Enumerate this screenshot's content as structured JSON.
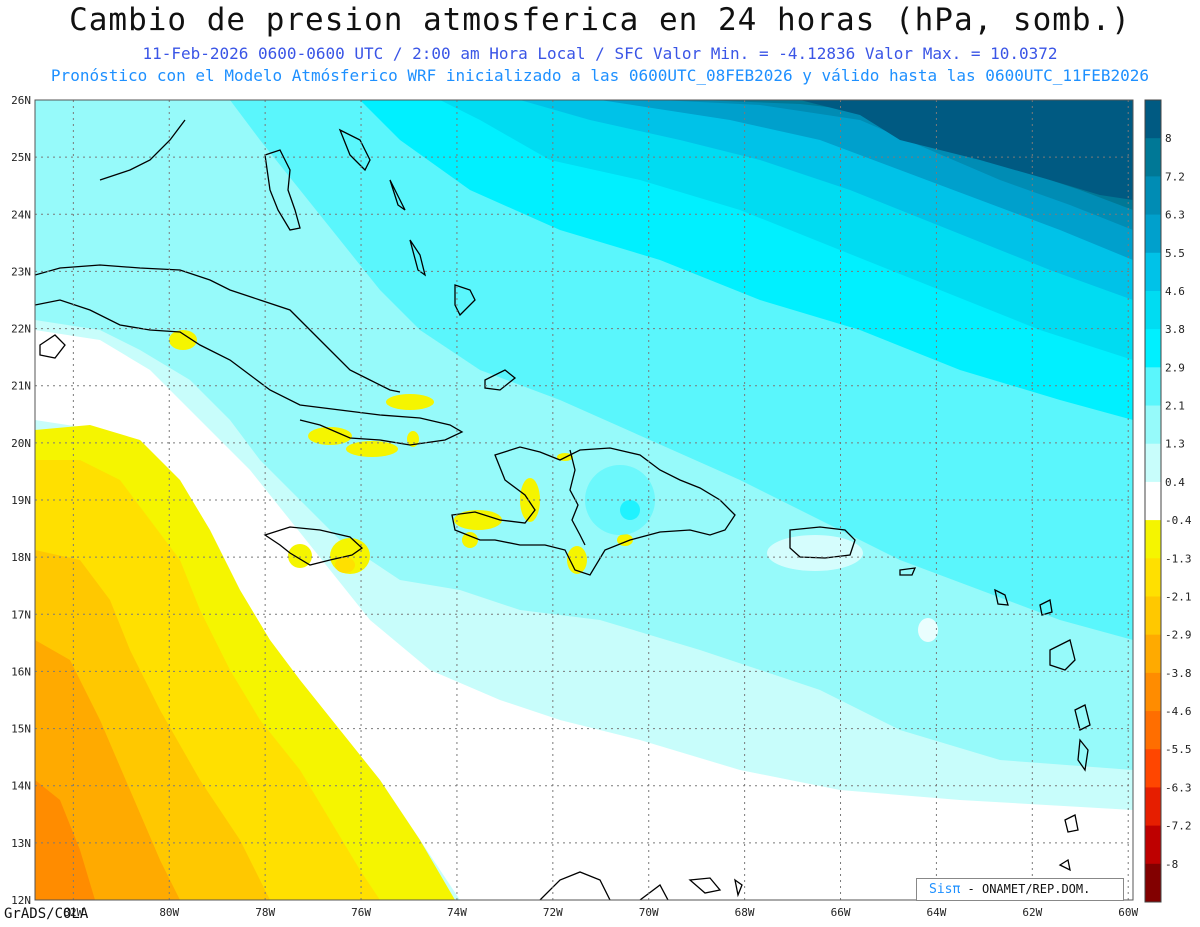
{
  "header": {
    "title": "Cambio de presion atmosferica en 24 horas (hPa, somb.)",
    "line1": "11-Feb-2026   0600-0600 UTC / 2:00 am Hora Local / SFC    Valor Min. = -4.12836  Valor Max. = 10.0372",
    "line2": "Pronóstico con el Modelo Atmósferico WRF inicializado a las 0600UTC_08FEB2026 y válido hasta las  0600UTC_11FEB2026"
  },
  "map": {
    "lat_labels": [
      "26N",
      "25N",
      "24N",
      "23N",
      "22N",
      "21N",
      "20N",
      "19N",
      "18N",
      "17N",
      "16N",
      "15N",
      "14N",
      "13N",
      "12N"
    ],
    "lon_labels": [
      "82W",
      "80W",
      "78W",
      "76W",
      "74W",
      "72W",
      "70W",
      "68W",
      "66W",
      "64W",
      "62W",
      "60W"
    ],
    "lat_range": [
      12,
      26
    ],
    "lon_range": [
      -82.8,
      -59.9
    ]
  },
  "colorbar": {
    "labels": [
      "8",
      "7.2",
      "6.3",
      "5.5",
      "4.6",
      "3.8",
      "2.9",
      "2.1",
      "1.3",
      "0.4",
      "-0.4",
      "-1.3",
      "-2.1",
      "-2.9",
      "-3.8",
      "-4.6",
      "-5.5",
      "-6.3",
      "-7.2",
      "-8"
    ],
    "colors": [
      "#005a82",
      "#007896",
      "#008cb4",
      "#00a0cc",
      "#00c2e8",
      "#00dcf2",
      "#00f0ff",
      "#5af6fc",
      "#96fafa",
      "#c8fdfb",
      "#ffffff",
      "#f5f500",
      "#ffe000",
      "#ffc800",
      "#ffaa00",
      "#ff8c00",
      "#ff6e00",
      "#ff4600",
      "#e61e00",
      "#be0000",
      "#820000"
    ]
  },
  "footer": {
    "left": "GrADS/COLA",
    "credit_brand": "Sisπ",
    "credit_text": " - ONAMET/REP.DOM."
  }
}
